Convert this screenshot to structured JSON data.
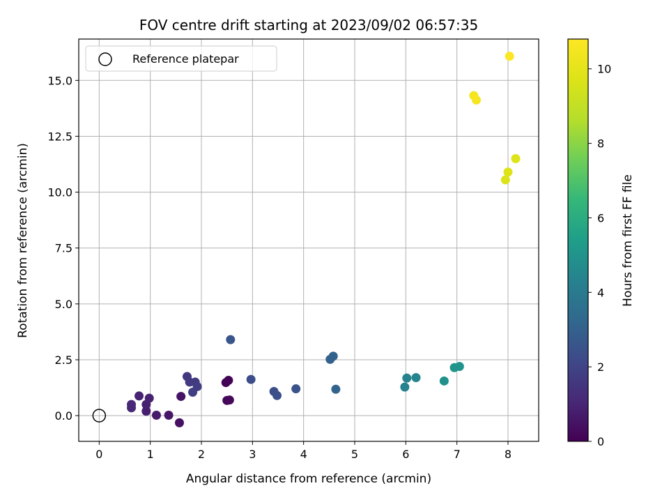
{
  "chart_data": {
    "type": "scatter",
    "title": "FOV centre drift starting at 2023/09/02 06:57:35",
    "xlabel": "Angular distance from reference (arcmin)",
    "ylabel": "Rotation from reference (arcmin)",
    "xlim": [
      -0.4,
      8.6
    ],
    "ylim": [
      -1.15,
      16.85
    ],
    "xticks": [
      0,
      1,
      2,
      3,
      4,
      5,
      6,
      7,
      8
    ],
    "yticks": [
      0.0,
      2.5,
      5.0,
      7.5,
      10.0,
      12.5,
      15.0
    ],
    "xtick_labels": [
      "0",
      "1",
      "2",
      "3",
      "4",
      "5",
      "6",
      "7",
      "8"
    ],
    "ytick_labels": [
      "0.0",
      "2.5",
      "5.0",
      "7.5",
      "10.0",
      "12.5",
      "15.0"
    ],
    "grid": true,
    "legend": {
      "placement": "top-left",
      "entries": [
        "Reference platepar"
      ]
    },
    "reference_point": {
      "x": 0,
      "y": 0
    },
    "colorbar": {
      "label": "Hours from first FF file",
      "colormap": "viridis",
      "range": [
        0,
        10.8
      ],
      "ticks": [
        0,
        2,
        4,
        6,
        8,
        10
      ],
      "tick_labels": [
        "0",
        "2",
        "4",
        "6",
        "8",
        "10"
      ]
    },
    "points": [
      {
        "x": 2.48,
        "y": 1.48,
        "c": 0.05
      },
      {
        "x": 2.53,
        "y": 1.58,
        "c": 0.1
      },
      {
        "x": 2.5,
        "y": 0.68,
        "c": 0.15
      },
      {
        "x": 2.55,
        "y": 0.7,
        "c": 0.2
      },
      {
        "x": 1.57,
        "y": -0.32,
        "c": 0.45
      },
      {
        "x": 1.6,
        "y": 0.86,
        "c": 0.5
      },
      {
        "x": 1.36,
        "y": 0.02,
        "c": 0.6
      },
      {
        "x": 1.12,
        "y": 0.02,
        "c": 0.7
      },
      {
        "x": 0.92,
        "y": 0.2,
        "c": 0.8
      },
      {
        "x": 0.92,
        "y": 0.5,
        "c": 0.85
      },
      {
        "x": 0.98,
        "y": 0.78,
        "c": 0.9
      },
      {
        "x": 0.78,
        "y": 0.88,
        "c": 0.95
      },
      {
        "x": 0.63,
        "y": 0.35,
        "c": 1.05
      },
      {
        "x": 0.63,
        "y": 0.5,
        "c": 1.1
      },
      {
        "x": 1.72,
        "y": 1.75,
        "c": 1.6
      },
      {
        "x": 1.77,
        "y": 1.5,
        "c": 1.65
      },
      {
        "x": 1.88,
        "y": 1.5,
        "c": 1.7
      },
      {
        "x": 1.92,
        "y": 1.3,
        "c": 1.75
      },
      {
        "x": 1.83,
        "y": 1.05,
        "c": 1.8
      },
      {
        "x": 2.97,
        "y": 1.62,
        "c": 2.3
      },
      {
        "x": 3.42,
        "y": 1.08,
        "c": 2.35
      },
      {
        "x": 3.48,
        "y": 0.9,
        "c": 2.4
      },
      {
        "x": 3.85,
        "y": 1.2,
        "c": 2.5
      },
      {
        "x": 2.57,
        "y": 3.4,
        "c": 2.6
      },
      {
        "x": 4.52,
        "y": 2.52,
        "c": 3.0
      },
      {
        "x": 4.58,
        "y": 2.66,
        "c": 3.05
      },
      {
        "x": 4.63,
        "y": 1.18,
        "c": 3.1
      },
      {
        "x": 5.98,
        "y": 1.28,
        "c": 4.3
      },
      {
        "x": 6.02,
        "y": 1.68,
        "c": 4.35
      },
      {
        "x": 6.2,
        "y": 1.7,
        "c": 4.4
      },
      {
        "x": 6.75,
        "y": 1.55,
        "c": 4.9
      },
      {
        "x": 6.95,
        "y": 2.15,
        "c": 5.0
      },
      {
        "x": 7.05,
        "y": 2.2,
        "c": 5.05
      },
      {
        "x": 7.95,
        "y": 10.55,
        "c": 9.7
      },
      {
        "x": 8.0,
        "y": 10.9,
        "c": 9.75
      },
      {
        "x": 8.15,
        "y": 11.5,
        "c": 9.8
      },
      {
        "x": 7.33,
        "y": 14.32,
        "c": 10.5
      },
      {
        "x": 7.38,
        "y": 14.12,
        "c": 10.55
      },
      {
        "x": 8.03,
        "y": 16.08,
        "c": 10.8
      }
    ]
  }
}
